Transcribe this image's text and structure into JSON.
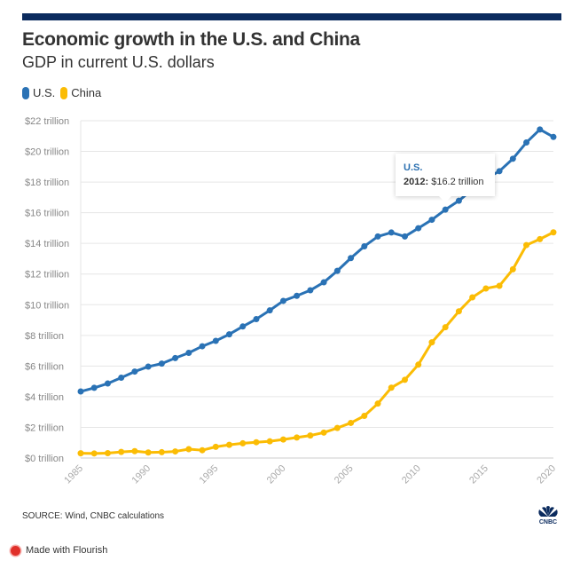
{
  "chart_data": {
    "type": "line",
    "title": "Economic growth in the U.S. and China",
    "subtitle": "GDP in current U.S. dollars",
    "xlabel": "",
    "ylabel": "",
    "xlim": [
      1985,
      2020
    ],
    "ylim": [
      0,
      22
    ],
    "grid": true,
    "legend_position": "top-left",
    "x_ticks": [
      "1985",
      "1990",
      "1995",
      "2000",
      "2005",
      "2010",
      "2015",
      "2020"
    ],
    "y_ticks": [
      "$0 trillion",
      "$2 trillion",
      "$4 trillion",
      "$6 trillion",
      "$8 trillion",
      "$10 trillion",
      "$12 trillion",
      "$14 trillion",
      "$16 trillion",
      "$18 trillion",
      "$20 trillion",
      "$22 trillion"
    ],
    "x": [
      1985,
      1986,
      1987,
      1988,
      1989,
      1990,
      1991,
      1992,
      1993,
      1994,
      1995,
      1996,
      1997,
      1998,
      1999,
      2000,
      2001,
      2002,
      2003,
      2004,
      2005,
      2006,
      2007,
      2008,
      2009,
      2010,
      2011,
      2012,
      2013,
      2014,
      2015,
      2016,
      2017,
      2018,
      2019,
      2020
    ],
    "series": [
      {
        "name": "U.S.",
        "color": "#2a72b5",
        "values": [
          4.34,
          4.58,
          4.86,
          5.24,
          5.64,
          5.96,
          6.16,
          6.52,
          6.86,
          7.29,
          7.64,
          8.07,
          8.58,
          9.06,
          9.63,
          10.25,
          10.58,
          10.94,
          11.46,
          12.21,
          13.04,
          13.81,
          14.45,
          14.71,
          14.45,
          14.99,
          15.54,
          16.2,
          16.78,
          17.52,
          18.22,
          18.71,
          19.52,
          20.58,
          21.43,
          20.94
        ]
      },
      {
        "name": "China",
        "color": "#fbbc04",
        "values": [
          0.31,
          0.3,
          0.32,
          0.4,
          0.45,
          0.36,
          0.38,
          0.43,
          0.58,
          0.51,
          0.73,
          0.86,
          0.96,
          1.03,
          1.09,
          1.21,
          1.34,
          1.47,
          1.66,
          1.96,
          2.29,
          2.75,
          3.55,
          4.59,
          5.1,
          6.09,
          7.55,
          8.53,
          9.57,
          10.48,
          11.06,
          11.23,
          12.31,
          13.89,
          14.28,
          14.72
        ]
      }
    ],
    "tooltip": {
      "series": "U.S.",
      "year_label": "2012:",
      "value_label": "$16.2 trillion"
    },
    "source": "SOURCE: Wind, CNBC calculations"
  },
  "footer": {
    "flourish": "Made with Flourish",
    "logo": "CNBC"
  }
}
